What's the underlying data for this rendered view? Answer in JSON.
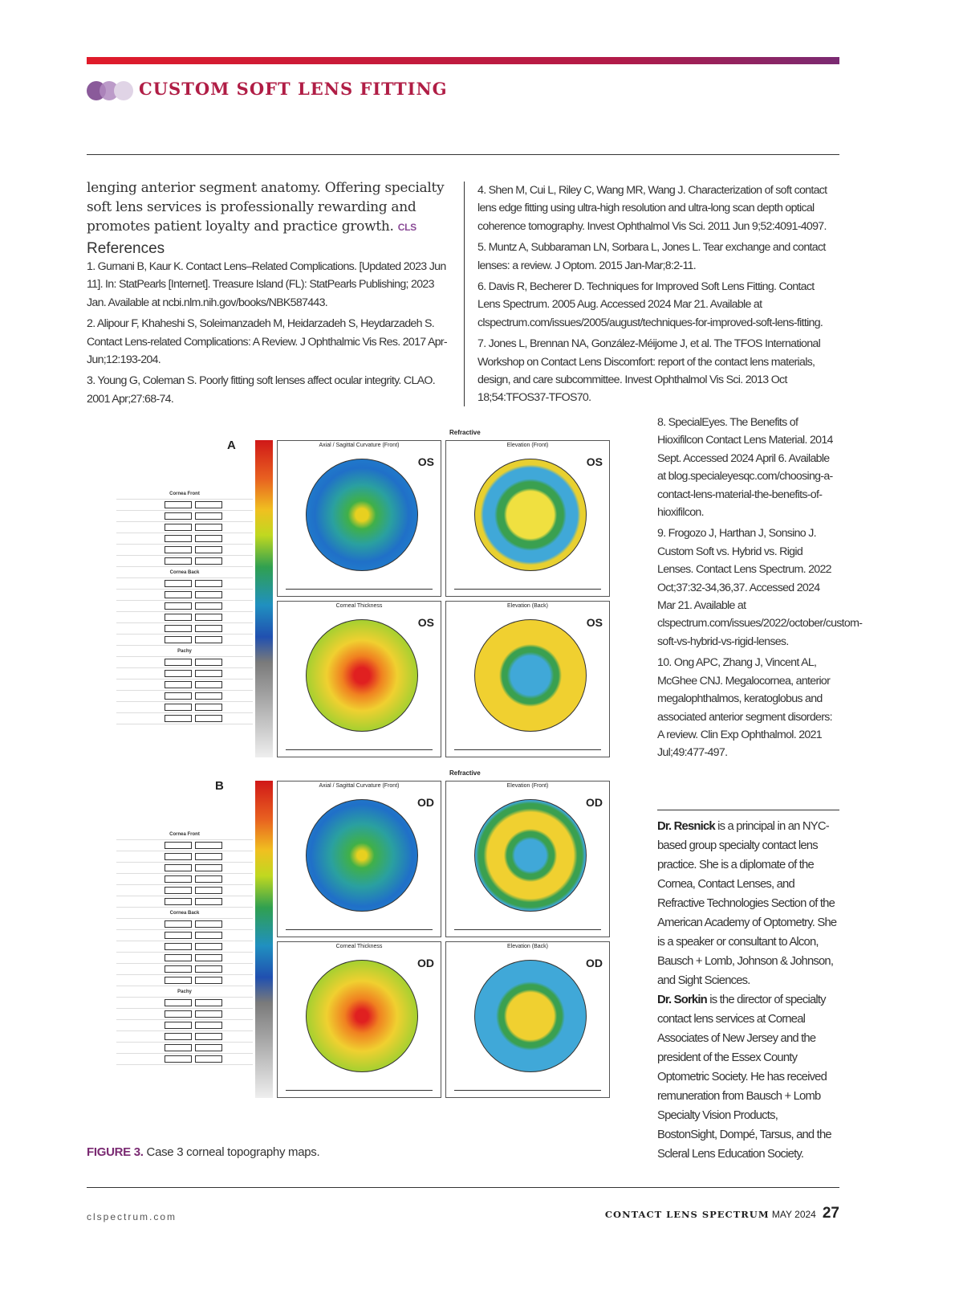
{
  "header": {
    "section_title": "CUSTOM SOFT LENS FITTING",
    "accent_color": "#b01d45",
    "bar_colors": [
      "#e01b2a",
      "#7a2a72"
    ]
  },
  "body_text": {
    "paragraph": "lenging anterior segment anatomy. Offering specialty soft lens services is professionally rewarding and promotes patient loyalty and practice growth.",
    "end_mark": "CLS"
  },
  "references": {
    "heading": "References",
    "items": [
      "1. Gurnani B, Kaur K. Contact Lens–Related Complications. [Updated 2023 Jun 11]. In: StatPearls [Internet]. Treasure Island (FL): StatPearls Publishing; 2023 Jan. Available at ncbi.nlm.nih.gov/books/NBK587443.",
      "2. Alipour F, Khaheshi S, Soleimanzadeh M, Heidarzadeh S, Heydarzadeh S. Contact Lens-related Complications: A Review. J Ophthalmic Vis Res. 2017 Apr-Jun;12:193-204.",
      "3. Young G, Coleman S. Poorly fitting soft lenses affect ocular integrity. CLAO. 2001 Apr;27:68-74.",
      "4. Shen M, Cui L, Riley C, Wang MR, Wang J. Characterization of soft contact lens edge fitting using ultra-high resolution and ultra-long scan depth optical coherence tomography. Invest Ophthalmol Vis Sci. 2011 Jun 9;52:4091-4097.",
      "5. Muntz A, Subbaraman LN, Sorbara L, Jones L. Tear exchange and contact lenses: a review. J Optom. 2015 Jan-Mar;8:2-11.",
      "6. Davis R, Becherer D. Techniques for Improved Soft Lens Fitting. Contact Lens Spectrum. 2005 Aug. Accessed 2024 Mar 21. Available at clspectrum.com/issues/2005/august/techniques-for-improved-soft-lens-fitting.",
      "7. Jones L, Brennan NA, González-Méijome J, et al. The TFOS International Workshop on Contact Lens Discomfort: report of the contact lens materials, design, and care subcommittee. Invest Ophthalmol Vis Sci. 2013 Oct 18;54:TFOS37-TFOS70.",
      "8. SpecialEyes. The Benefits of Hioxifilcon Contact Lens Material. 2014 Sept. Accessed 2024 April 6. Available at blog.specialeyesqc.com/choosing-a-contact-lens-material-the-benefits-of-hioxifilcon.",
      "9. Frogozo J, Harthan J, Sonsino J. Custom Soft vs. Hybrid vs. Rigid Lenses. Contact Lens Spectrum. 2022 Oct;37:32-34,36,37. Accessed 2024 Mar 21. Available at clspectrum.com/issues/2022/october/custom-soft-vs-hybrid-vs-rigid-lenses.",
      "10. Ong APC, Zhang J, Vincent AL, McGhee CNJ. Megalocornea, anterior megalophthalmos, keratoglobus and associated anterior segment disorders: A review. Clin Exp Ophthalmol. 2021 Jul;49:477-497."
    ]
  },
  "figure": {
    "label": "FIGURE 3.",
    "caption": "Case 3 corneal topography maps.",
    "panels": [
      {
        "letter": "A",
        "header": "Refractive",
        "eye": "OS",
        "maps": [
          "Axial / Sagittal Curvature (Front)",
          "Elevation (Front)",
          "Corneal Thickness",
          "Elevation (Back)"
        ]
      },
      {
        "letter": "B",
        "header": "Refractive",
        "eye": "OD",
        "maps": [
          "Axial / Sagittal Curvature (Front)",
          "Elevation (Front)",
          "Corneal Thickness",
          "Elevation (Back)"
        ]
      }
    ],
    "table_labels": [
      "Cornea Front",
      "Cornea Back",
      "Pachy"
    ]
  },
  "bio": {
    "author1_name": "Dr. Resnick",
    "author1_text": " is a principal in an NYC-based group specialty contact lens practice. She is a diplomate of the Cornea, Contact Lenses, and Refractive Technologies Section of the American Academy of Optometry. She is a speaker or consultant to Alcon, Bausch + Lomb, Johnson & Johnson, and Sight Sciences.",
    "author2_name": "Dr. Sorkin",
    "author2_text": " is the director of specialty contact lens services at Corneal Associates of New Jersey and the president of the Essex County Optometric Society. He has received remuneration from Bausch + Lomb Specialty Vision Products, BostonSight, Dompé, Tarsus, and the Scleral Lens Education Society."
  },
  "footer": {
    "website": "clspectrum.com",
    "magazine": "CONTACT LENS SPECTRUM",
    "issue": "MAY 2024",
    "page": "27"
  }
}
